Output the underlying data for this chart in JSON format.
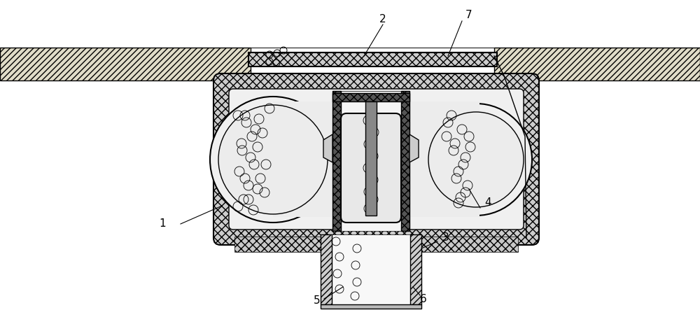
{
  "bg_color": "#ffffff",
  "black": "#000000",
  "gray_light": "#f0f0f0",
  "gray_med": "#d8d8d8",
  "gray_dark": "#aaaaaa",
  "hatch_fill": "#e0dcc8",
  "figsize": [
    10.0,
    4.53
  ],
  "dpi": 100
}
